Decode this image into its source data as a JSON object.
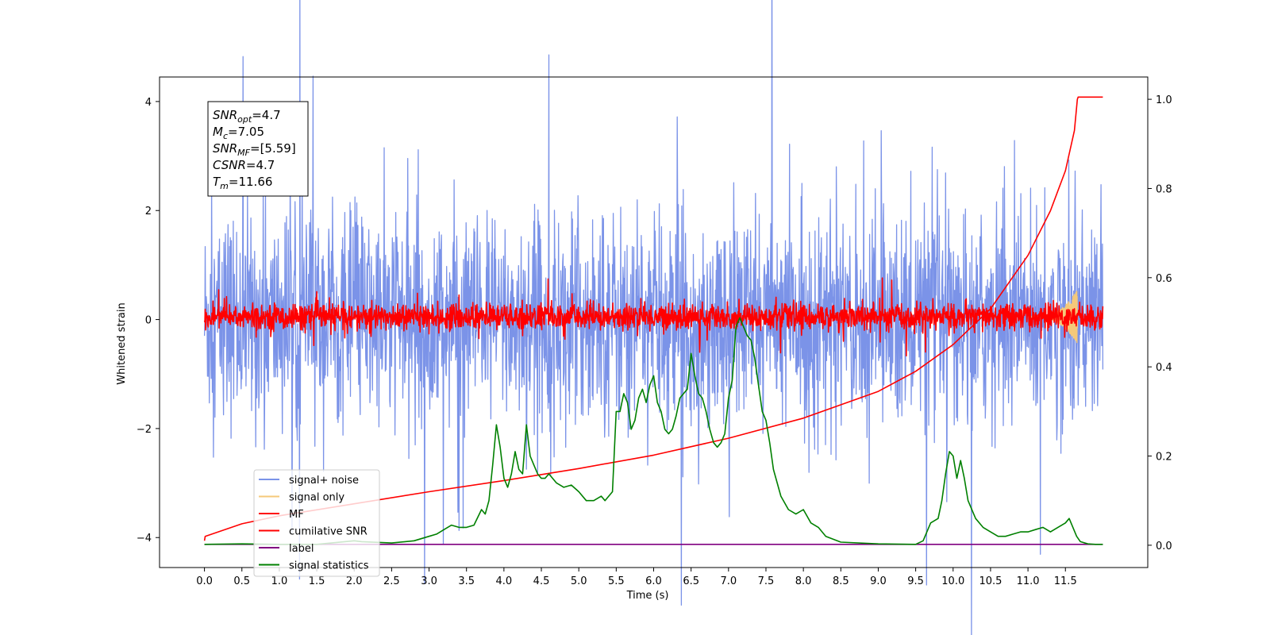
{
  "chart_data": {
    "type": "line",
    "xlabel": "Time (s)",
    "ylabel": "Whitened strain",
    "xlim": [
      -0.6,
      12.6
    ],
    "ylim": [
      -4.55,
      4.45
    ],
    "y2lim": [
      -0.05,
      1.05
    ],
    "x_ticks": [
      0.0,
      0.5,
      1.0,
      1.5,
      2.0,
      2.5,
      3.0,
      3.5,
      4.0,
      4.5,
      5.0,
      5.5,
      6.0,
      6.5,
      7.0,
      7.5,
      8.0,
      8.5,
      9.0,
      9.5,
      10.0,
      10.5,
      11.0,
      11.5
    ],
    "x_tick_labels": [
      "0.0",
      "0.5",
      "1.0",
      "1.5",
      "2.0",
      "2.5",
      "3.0",
      "3.5",
      "4.0",
      "4.5",
      "5.0",
      "5.5",
      "6.0",
      "6.5",
      "7.0",
      "7.5",
      "8.0",
      "8.5",
      "9.0",
      "9.5",
      "10.0",
      "10.5",
      "11.0",
      "11.5"
    ],
    "y_ticks": [
      -4,
      -2,
      0,
      2,
      4
    ],
    "y_tick_labels": [
      "−4",
      "−2",
      "0",
      "2",
      "4"
    ],
    "y2_ticks": [
      0.0,
      0.2,
      0.4,
      0.6,
      0.8,
      1.0
    ],
    "y2_tick_labels": [
      "0.0",
      "0.2",
      "0.4",
      "0.6",
      "0.8",
      "1.0"
    ],
    "grid": false,
    "legend": {
      "placement": "lower-left",
      "entries": [
        "signal+ noise",
        "signal only",
        "MF",
        "cumilative SNR",
        "label",
        "signal statistics"
      ]
    },
    "annotation": {
      "lines": [
        {
          "sym": "SNR",
          "sub": "opt",
          "val": "=4.7"
        },
        {
          "sym": "M",
          "sub": "c",
          "val": "=7.05"
        },
        {
          "sym": "SNR",
          "sub": "MF",
          "val": "=[5.59]"
        },
        {
          "sym": "CSNR",
          "sub": "",
          "val": "=4.7"
        },
        {
          "sym": "T",
          "sub": "m",
          "val": "=11.66"
        }
      ]
    },
    "series": [
      {
        "name": "signal+ noise",
        "axis": "left",
        "color": "#7b93e8",
        "kind": "noise",
        "x_start": 0.0,
        "x_end": 12.0,
        "center": 0.0,
        "amplitude": 1.75,
        "x": [],
        "values": []
      },
      {
        "name": "signal only",
        "axis": "left",
        "color": "#f5c97a",
        "kind": "chirp",
        "x_start": 11.0,
        "x_end": 11.66,
        "center": 0.05,
        "amplitude": 0.5,
        "x": [],
        "values": []
      },
      {
        "name": "MF",
        "axis": "left",
        "color": "#ff0000",
        "kind": "noise",
        "x_start": 0.0,
        "x_end": 12.0,
        "center": 0.05,
        "amplitude": 0.22,
        "x": [],
        "values": []
      },
      {
        "name": "cumilative SNR",
        "axis": "right",
        "color": "#ff0000",
        "x": [
          0.0,
          0.01,
          0.5,
          1.0,
          2.0,
          3.0,
          4.0,
          5.0,
          6.0,
          7.0,
          8.0,
          9.0,
          9.5,
          10.0,
          10.5,
          11.0,
          11.3,
          11.5,
          11.62,
          11.66,
          11.67,
          12.0
        ],
        "values": [
          0.01,
          0.02,
          0.048,
          0.066,
          0.093,
          0.12,
          0.145,
          0.172,
          0.202,
          0.24,
          0.285,
          0.345,
          0.39,
          0.45,
          0.53,
          0.65,
          0.75,
          0.84,
          0.93,
          1.0,
          1.005,
          1.005
        ]
      },
      {
        "name": "label",
        "axis": "right",
        "color": "#800080",
        "x": [
          0.0,
          12.0
        ],
        "values": [
          0.002,
          0.002
        ]
      },
      {
        "name": "signal statistics",
        "axis": "right",
        "color": "#008000",
        "x": [
          0.0,
          0.5,
          1.0,
          1.5,
          2.0,
          2.1,
          2.5,
          2.8,
          3.0,
          3.1,
          3.2,
          3.3,
          3.4,
          3.5,
          3.6,
          3.7,
          3.75,
          3.8,
          3.85,
          3.9,
          3.95,
          4.0,
          4.05,
          4.1,
          4.15,
          4.2,
          4.25,
          4.3,
          4.35,
          4.4,
          4.45,
          4.5,
          4.55,
          4.6,
          4.7,
          4.8,
          4.9,
          5.0,
          5.1,
          5.2,
          5.3,
          5.35,
          5.4,
          5.45,
          5.5,
          5.55,
          5.6,
          5.65,
          5.7,
          5.75,
          5.8,
          5.85,
          5.9,
          5.95,
          6.0,
          6.05,
          6.1,
          6.15,
          6.2,
          6.25,
          6.3,
          6.35,
          6.4,
          6.45,
          6.5,
          6.55,
          6.6,
          6.65,
          6.7,
          6.75,
          6.8,
          6.85,
          6.9,
          6.95,
          7.0,
          7.05,
          7.1,
          7.15,
          7.2,
          7.25,
          7.3,
          7.35,
          7.4,
          7.45,
          7.5,
          7.55,
          7.6,
          7.7,
          7.8,
          7.9,
          8.0,
          8.1,
          8.2,
          8.3,
          8.5,
          9.0,
          9.5,
          9.6,
          9.7,
          9.8,
          9.85,
          9.9,
          9.95,
          10.0,
          10.05,
          10.1,
          10.15,
          10.2,
          10.3,
          10.4,
          10.5,
          10.6,
          10.7,
          10.8,
          10.9,
          11.0,
          11.1,
          11.2,
          11.3,
          11.4,
          11.5,
          11.55,
          11.6,
          11.65,
          11.7,
          11.8,
          11.9,
          12.0
        ],
        "values": [
          0.002,
          0.003,
          0.002,
          0.002,
          0.01,
          0.008,
          0.005,
          0.01,
          0.02,
          0.025,
          0.035,
          0.045,
          0.04,
          0.04,
          0.045,
          0.08,
          0.07,
          0.1,
          0.18,
          0.27,
          0.22,
          0.15,
          0.13,
          0.16,
          0.21,
          0.17,
          0.16,
          0.27,
          0.2,
          0.18,
          0.16,
          0.15,
          0.15,
          0.16,
          0.14,
          0.13,
          0.135,
          0.12,
          0.1,
          0.1,
          0.11,
          0.1,
          0.11,
          0.12,
          0.3,
          0.3,
          0.34,
          0.32,
          0.26,
          0.28,
          0.33,
          0.35,
          0.32,
          0.36,
          0.38,
          0.32,
          0.3,
          0.26,
          0.25,
          0.26,
          0.29,
          0.33,
          0.34,
          0.35,
          0.43,
          0.38,
          0.34,
          0.33,
          0.3,
          0.26,
          0.23,
          0.22,
          0.23,
          0.25,
          0.33,
          0.37,
          0.49,
          0.51,
          0.49,
          0.47,
          0.46,
          0.42,
          0.36,
          0.3,
          0.28,
          0.23,
          0.17,
          0.11,
          0.08,
          0.07,
          0.08,
          0.05,
          0.04,
          0.02,
          0.007,
          0.003,
          0.002,
          0.01,
          0.05,
          0.06,
          0.1,
          0.16,
          0.21,
          0.2,
          0.15,
          0.19,
          0.15,
          0.1,
          0.06,
          0.04,
          0.03,
          0.02,
          0.02,
          0.025,
          0.03,
          0.03,
          0.035,
          0.04,
          0.03,
          0.04,
          0.05,
          0.06,
          0.04,
          0.02,
          0.008,
          0.003,
          0.002,
          0.002
        ]
      }
    ]
  }
}
